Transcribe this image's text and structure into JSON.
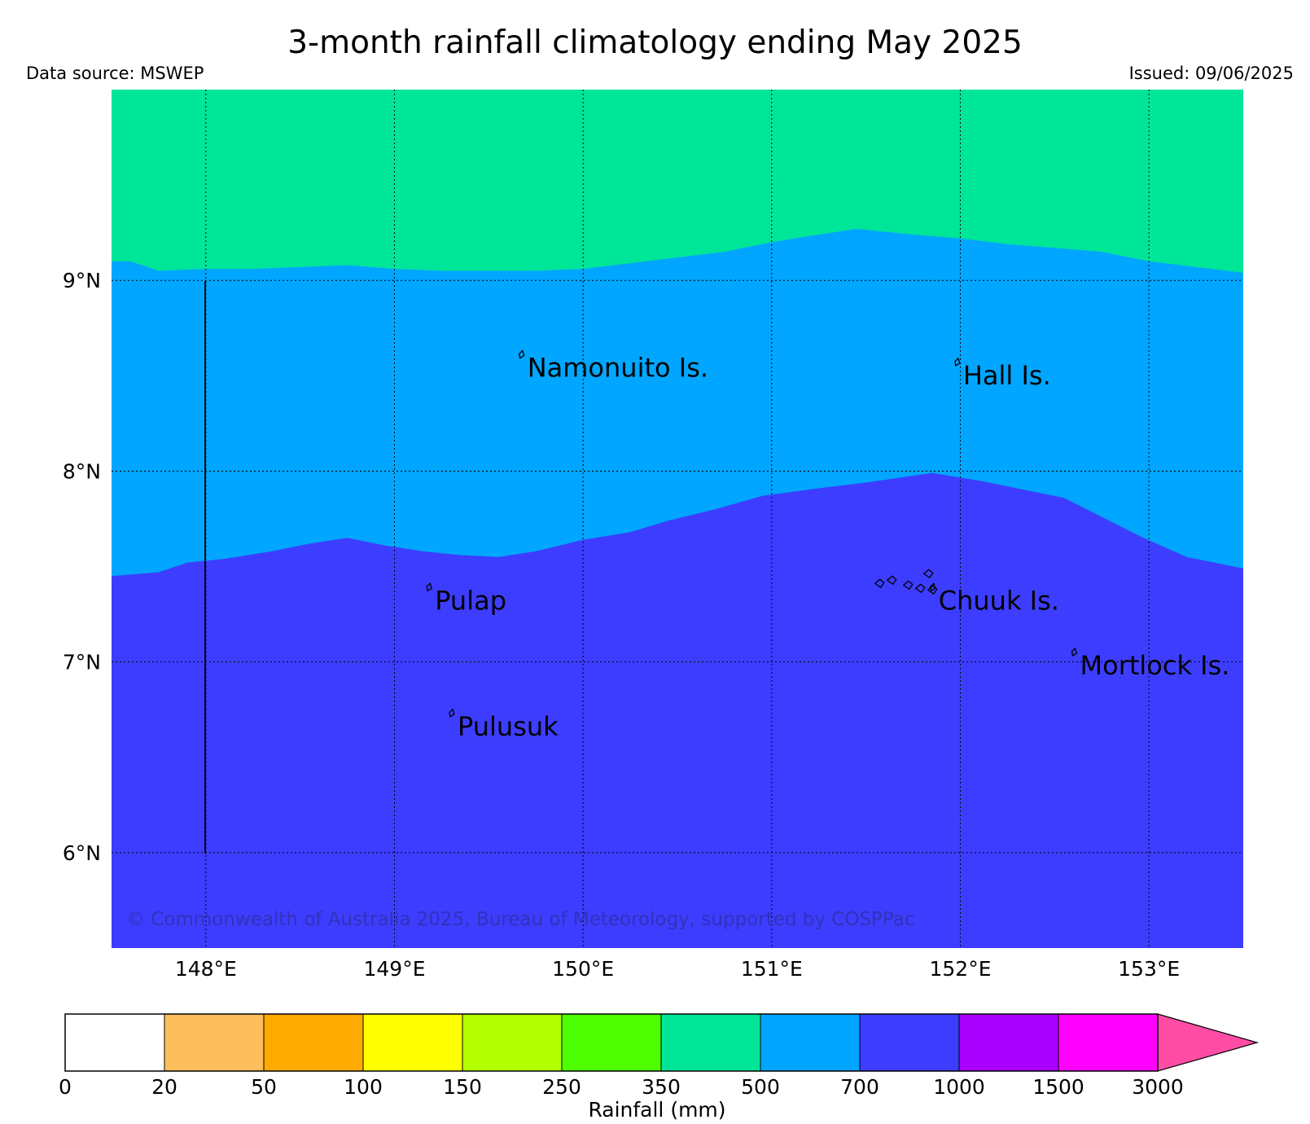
{
  "header": {
    "title": "3-month rainfall climatology ending May 2025",
    "source": "Data source: MSWEP",
    "issued": "Issued: 09/06/2025"
  },
  "map": {
    "lon_range": [
      147.5,
      153.5
    ],
    "lat_range": [
      5.5,
      10.0
    ],
    "lon_ticks": [
      {
        "value": 148,
        "label": "148°E"
      },
      {
        "value": 149,
        "label": "149°E"
      },
      {
        "value": 150,
        "label": "150°E"
      },
      {
        "value": 151,
        "label": "151°E"
      },
      {
        "value": 152,
        "label": "152°E"
      },
      {
        "value": 153,
        "label": "153°E"
      }
    ],
    "lat_ticks": [
      {
        "value": 9,
        "label": "9°N"
      },
      {
        "value": 8,
        "label": "8°N"
      },
      {
        "value": 7,
        "label": "7°N"
      },
      {
        "value": 6,
        "label": "6°N"
      }
    ],
    "zones": {
      "upper_color": "#00e699",
      "middle_color": "#00a6ff",
      "lower_color": "#3d3dff"
    },
    "contour_500": [
      [
        147.5,
        9.1
      ],
      [
        147.6,
        9.1
      ],
      [
        147.75,
        9.05
      ],
      [
        148.0,
        9.06
      ],
      [
        148.25,
        9.06
      ],
      [
        148.5,
        9.07
      ],
      [
        148.75,
        9.08
      ],
      [
        149.0,
        9.06
      ],
      [
        149.25,
        9.05
      ],
      [
        149.5,
        9.05
      ],
      [
        149.75,
        9.05
      ],
      [
        150.0,
        9.06
      ],
      [
        150.25,
        9.09
      ],
      [
        150.5,
        9.12
      ],
      [
        150.75,
        9.15
      ],
      [
        151.0,
        9.2
      ],
      [
        151.25,
        9.24
      ],
      [
        151.45,
        9.27
      ],
      [
        151.75,
        9.24
      ],
      [
        152.0,
        9.22
      ],
      [
        152.25,
        9.19
      ],
      [
        152.5,
        9.17
      ],
      [
        152.75,
        9.15
      ],
      [
        153.0,
        9.1
      ],
      [
        153.25,
        9.07
      ],
      [
        153.5,
        9.04
      ]
    ],
    "contour_700": [
      [
        147.5,
        7.45
      ],
      [
        147.75,
        7.47
      ],
      [
        147.9,
        7.52
      ],
      [
        148.1,
        7.54
      ],
      [
        148.35,
        7.58
      ],
      [
        148.55,
        7.62
      ],
      [
        148.75,
        7.65
      ],
      [
        148.95,
        7.61
      ],
      [
        149.15,
        7.58
      ],
      [
        149.35,
        7.56
      ],
      [
        149.55,
        7.55
      ],
      [
        149.75,
        7.58
      ],
      [
        150.0,
        7.64
      ],
      [
        150.25,
        7.68
      ],
      [
        150.45,
        7.74
      ],
      [
        150.7,
        7.8
      ],
      [
        150.95,
        7.87
      ],
      [
        151.25,
        7.91
      ],
      [
        151.5,
        7.94
      ],
      [
        151.85,
        7.99
      ],
      [
        152.1,
        7.95
      ],
      [
        152.3,
        7.91
      ],
      [
        152.55,
        7.86
      ],
      [
        152.75,
        7.76
      ],
      [
        152.95,
        7.66
      ],
      [
        153.2,
        7.55
      ],
      [
        153.5,
        7.49
      ]
    ],
    "islands": [
      {
        "name": "Namonuito Is.",
        "lon": 149.67,
        "lat": 8.58
      },
      {
        "name": "Hall Is.",
        "lon": 151.98,
        "lat": 8.54
      },
      {
        "name": "Pulap",
        "lon": 149.18,
        "lat": 7.36
      },
      {
        "name": "Chuuk Is.",
        "lon": 151.85,
        "lat": 7.36
      },
      {
        "name": "Mortlock Is.",
        "lon": 152.6,
        "lat": 7.02
      },
      {
        "name": "Pulusuk",
        "lon": 149.3,
        "lat": 6.7
      }
    ],
    "copyright": "© Commonwealth of Australia 2025, Bureau of Meteorology, supported by COSPPac"
  },
  "legend": {
    "title": "Rainfall (mm)",
    "colors": [
      "#ffffff",
      "#ffbe5c",
      "#ffaa00",
      "#ffff00",
      "#b3ff00",
      "#4dff00",
      "#00e699",
      "#00a6ff",
      "#3d3dff",
      "#aa00ff",
      "#ff00ff",
      "#ff4da6"
    ],
    "labels": [
      "0",
      "20",
      "50",
      "100",
      "150",
      "250",
      "350",
      "500",
      "700",
      "1000",
      "1500",
      "3000"
    ]
  }
}
